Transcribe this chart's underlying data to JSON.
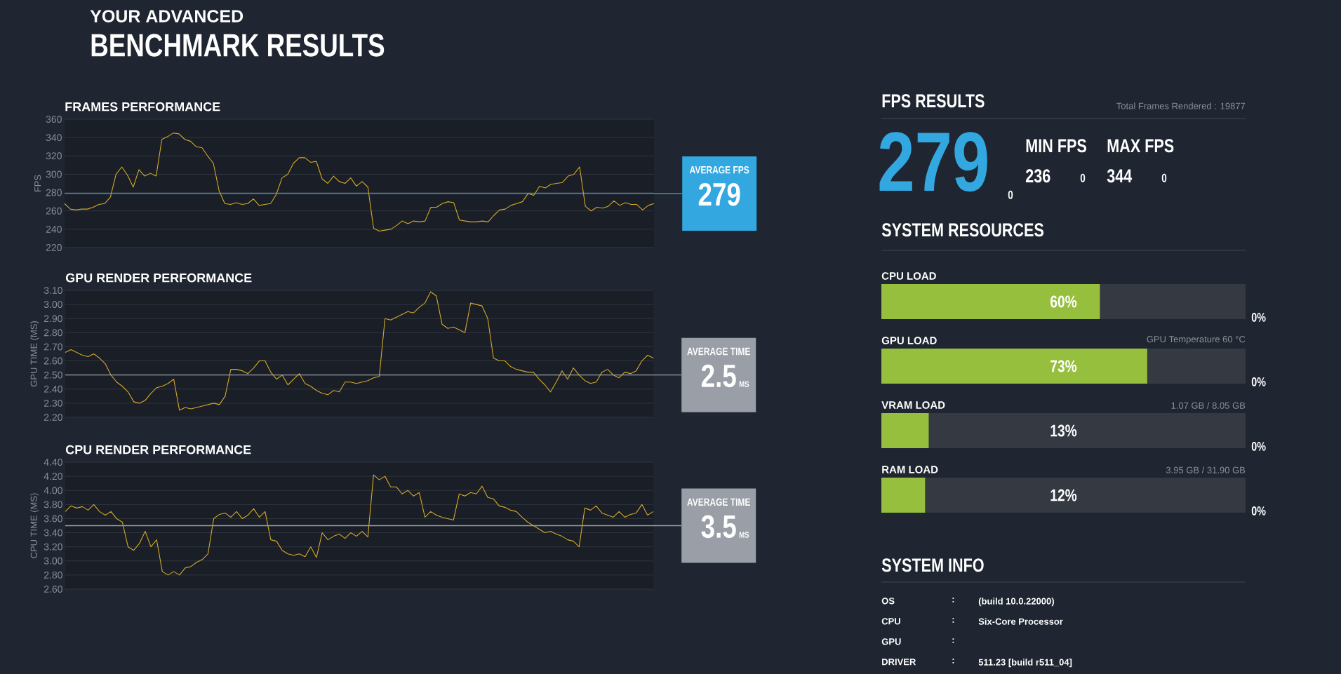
{
  "chart_data": [
    {
      "type": "other",
      "title": "YOUR ADVANCED",
      "subtitle": "BENCHMARK RESULTS"
    },
    {
      "type": "line",
      "title": "FRAMES PERFORMANCE",
      "ylabel": "FPS",
      "color": "#d4aa2a",
      "grid": "y",
      "ylim": [
        220,
        360
      ],
      "yticks": [
        220,
        240,
        260,
        280,
        300,
        320,
        340,
        360
      ],
      "ref_lines": [
        {
          "axis": "y",
          "value": 279,
          "label": "AVERAGE FPS",
          "color": "#33a8e0"
        }
      ],
      "annotations": [
        "279"
      ],
      "categories": [
        null,
        null,
        null,
        null,
        null,
        null,
        null,
        null,
        null,
        null,
        null,
        null,
        null,
        null,
        null,
        null,
        null,
        null,
        null,
        null,
        null,
        null,
        null,
        null,
        null,
        null,
        null,
        null,
        null,
        null,
        null,
        null,
        null,
        null,
        null,
        null,
        null,
        null,
        null,
        null,
        null,
        null,
        null,
        null,
        null,
        null,
        null,
        null,
        null,
        null,
        null,
        null,
        null,
        null,
        null,
        null,
        null,
        null,
        null,
        null,
        null,
        null,
        null,
        null,
        null,
        null,
        null,
        null,
        null,
        null,
        null,
        null,
        null,
        null,
        null,
        null,
        null,
        null,
        null,
        null,
        null,
        null,
        null,
        null,
        null,
        null,
        null,
        null,
        null,
        null,
        null,
        null,
        null,
        null,
        null,
        null,
        null,
        null,
        null,
        null,
        null,
        null,
        null,
        null
      ],
      "values": [
        268,
        262,
        261,
        262,
        262,
        264,
        267,
        268,
        275,
        300,
        308,
        299,
        286,
        305,
        298,
        301,
        298,
        338,
        341,
        345,
        344,
        338,
        336,
        330,
        329,
        320,
        312,
        282,
        268,
        267,
        269,
        267,
        268,
        273,
        266,
        267,
        268,
        278,
        296,
        300,
        312,
        318,
        318,
        313,
        314,
        295,
        290,
        298,
        292,
        290,
        296,
        287,
        292,
        286,
        241,
        238,
        239,
        240,
        244,
        249,
        246,
        249,
        248,
        249,
        264,
        264,
        268,
        270,
        269,
        250,
        249,
        248,
        248,
        249,
        248,
        255,
        261,
        262,
        266,
        268,
        270,
        279,
        277,
        287,
        285,
        289,
        290,
        291,
        298,
        300,
        308,
        265,
        260,
        264,
        263,
        265,
        271,
        266,
        269,
        267,
        267,
        261,
        266,
        268
      ]
    },
    {
      "type": "line",
      "title": "GPU RENDER PERFORMANCE",
      "ylabel": "GPU TIME (MS)",
      "color": "#d4aa2a",
      "grid": "y",
      "ylim": [
        2.2,
        3.1
      ],
      "yticks": [
        {
          "value": 2.2,
          "label": "2.20"
        },
        {
          "value": 2.3,
          "label": "2.30"
        },
        {
          "value": 2.4,
          "label": "2.40"
        },
        {
          "value": 2.5,
          "label": "2.50"
        },
        {
          "value": 2.6,
          "label": "2.60"
        },
        {
          "value": 2.7,
          "label": "2.70"
        },
        {
          "value": 2.8,
          "label": "2.80"
        },
        {
          "value": 2.9,
          "label": "2.90"
        },
        {
          "value": 3.0,
          "label": "3.00"
        },
        {
          "value": 3.1,
          "label": "3.10"
        }
      ],
      "ref_lines": [
        {
          "axis": "y",
          "value": 2.5,
          "label": "AVERAGE TIME",
          "color": "#9a9ea6"
        }
      ],
      "annotations": [
        "2.5",
        "MS"
      ],
      "categories": [
        null,
        null,
        null,
        null,
        null,
        null,
        null,
        null,
        null,
        null,
        null,
        null,
        null,
        null,
        null,
        null,
        null,
        null,
        null,
        null,
        null,
        null,
        null,
        null,
        null,
        null,
        null,
        null,
        null,
        null,
        null,
        null,
        null,
        null,
        null,
        null,
        null,
        null,
        null,
        null,
        null,
        null,
        null,
        null,
        null,
        null,
        null,
        null,
        null,
        null,
        null,
        null,
        null,
        null,
        null,
        null,
        null,
        null,
        null,
        null,
        null,
        null,
        null,
        null,
        null,
        null,
        null,
        null,
        null,
        null,
        null,
        null,
        null,
        null,
        null,
        null,
        null,
        null,
        null,
        null,
        null,
        null,
        null,
        null,
        null,
        null,
        null,
        null,
        null,
        null,
        null,
        null,
        null,
        null,
        null,
        null,
        null,
        null,
        null,
        null,
        null,
        null,
        null,
        null
      ],
      "values": [
        2.66,
        2.68,
        2.66,
        2.64,
        2.63,
        2.65,
        2.62,
        2.58,
        2.5,
        2.45,
        2.42,
        2.38,
        2.31,
        2.3,
        2.32,
        2.37,
        2.41,
        2.42,
        2.44,
        2.47,
        2.25,
        2.27,
        2.26,
        2.27,
        2.28,
        2.29,
        2.3,
        2.29,
        2.35,
        2.54,
        2.54,
        2.53,
        2.51,
        2.55,
        2.6,
        2.6,
        2.52,
        2.47,
        2.5,
        2.43,
        2.47,
        2.51,
        2.44,
        2.42,
        2.39,
        2.37,
        2.36,
        2.39,
        2.38,
        2.45,
        2.45,
        2.44,
        2.45,
        2.46,
        2.48,
        2.49,
        2.9,
        2.89,
        2.91,
        2.93,
        2.95,
        2.94,
        2.98,
        3.01,
        3.09,
        3.06,
        2.86,
        2.83,
        2.84,
        2.82,
        2.8,
        3.01,
        3.0,
        2.99,
        2.9,
        2.62,
        2.6,
        2.6,
        2.56,
        2.54,
        2.53,
        2.52,
        2.52,
        2.47,
        2.43,
        2.38,
        2.45,
        2.53,
        2.47,
        2.55,
        2.5,
        2.46,
        2.44,
        2.45,
        2.52,
        2.54,
        2.5,
        2.48,
        2.52,
        2.51,
        2.53,
        2.6,
        2.64,
        2.62
      ]
    },
    {
      "type": "line",
      "title": "CPU RENDER PERFORMANCE",
      "ylabel": "CPU TIME (MS)",
      "color": "#d4aa2a",
      "grid": "y",
      "ylim": [
        2.6,
        4.4
      ],
      "yticks": [
        {
          "value": 2.6,
          "label": "2.60"
        },
        {
          "value": 2.8,
          "label": "2.80"
        },
        {
          "value": 3.0,
          "label": "3.00"
        },
        {
          "value": 3.2,
          "label": "3.20"
        },
        {
          "value": 3.4,
          "label": "3.40"
        },
        {
          "value": 3.6,
          "label": "3.60"
        },
        {
          "value": 3.8,
          "label": "3.80"
        },
        {
          "value": 4.0,
          "label": "4.00"
        },
        {
          "value": 4.2,
          "label": "4.20"
        },
        {
          "value": 4.4,
          "label": "4.40"
        }
      ],
      "ref_lines": [
        {
          "axis": "y",
          "value": 3.5,
          "label": "AVERAGE TIME",
          "color": "#9a9ea6"
        }
      ],
      "annotations": [
        "3.5",
        "MS"
      ],
      "categories": [
        null,
        null,
        null,
        null,
        null,
        null,
        null,
        null,
        null,
        null,
        null,
        null,
        null,
        null,
        null,
        null,
        null,
        null,
        null,
        null,
        null,
        null,
        null,
        null,
        null,
        null,
        null,
        null,
        null,
        null,
        null,
        null,
        null,
        null,
        null,
        null,
        null,
        null,
        null,
        null,
        null,
        null,
        null,
        null,
        null,
        null,
        null,
        null,
        null,
        null,
        null,
        null,
        null,
        null,
        null,
        null,
        null,
        null,
        null,
        null,
        null,
        null,
        null,
        null,
        null,
        null,
        null,
        null,
        null,
        null,
        null,
        null,
        null,
        null,
        null,
        null,
        null,
        null,
        null,
        null,
        null,
        null,
        null,
        null,
        null,
        null,
        null,
        null,
        null,
        null,
        null,
        null,
        null,
        null,
        null,
        null,
        null,
        null,
        null,
        null,
        null,
        null,
        null,
        null
      ],
      "values": [
        3.7,
        3.78,
        3.75,
        3.77,
        3.72,
        3.8,
        3.7,
        3.65,
        3.7,
        3.6,
        3.55,
        3.2,
        3.15,
        3.25,
        3.42,
        3.2,
        3.3,
        2.85,
        2.8,
        2.85,
        2.8,
        2.9,
        2.92,
        2.98,
        3.02,
        3.1,
        3.6,
        3.66,
        3.68,
        3.62,
        3.7,
        3.6,
        3.65,
        3.74,
        3.62,
        3.7,
        3.3,
        3.28,
        3.15,
        3.1,
        3.08,
        3.1,
        3.06,
        3.2,
        3.05,
        3.4,
        3.3,
        3.35,
        3.38,
        3.32,
        3.4,
        3.35,
        3.42,
        3.34,
        4.22,
        4.15,
        4.2,
        4.05,
        4.05,
        3.95,
        4.0,
        3.92,
        3.97,
        3.62,
        3.7,
        3.65,
        3.62,
        3.6,
        3.58,
        3.95,
        3.92,
        3.97,
        3.95,
        4.06,
        3.9,
        3.88,
        3.78,
        3.76,
        3.72,
        3.7,
        3.62,
        3.55,
        3.5,
        3.45,
        3.4,
        3.42,
        3.38,
        3.35,
        3.3,
        3.28,
        3.2,
        3.75,
        3.72,
        3.78,
        3.68,
        3.65,
        3.62,
        3.7,
        3.62,
        3.66,
        3.68,
        3.8,
        3.65,
        3.7
      ]
    },
    {
      "type": "other",
      "title": "FPS RESULTS",
      "annotations": [
        "Total Frames Rendered : 19877",
        "279",
        "0",
        "MIN FPS",
        "236",
        "0",
        "MAX FPS",
        "344",
        "0"
      ]
    },
    {
      "type": "bar",
      "orientation": "horizontal",
      "title": "SYSTEM RESOURCES",
      "categories": [
        "CPU LOAD",
        "GPU LOAD",
        "VRAM LOAD",
        "RAM LOAD"
      ],
      "values": [
        60,
        73,
        13,
        12
      ],
      "value_labels": [
        "60%",
        "73%",
        "13%",
        "12%"
      ],
      "color": "#95bf3c",
      "xlim": [
        0,
        100
      ],
      "annotations": [
        "GPU Temperature 60 °C",
        "1.07 GB / 8.05 GB",
        "3.95 GB / 31.90 GB",
        "0%",
        "0%",
        "0%",
        "0%"
      ]
    },
    {
      "type": "other",
      "title": "SYSTEM INFO",
      "annotations": [
        "OS",
        ":",
        "(build 10.0.22000)",
        "CPU",
        ":",
        "Six-Core Processor",
        "GPU",
        ":",
        "DRIVER",
        ":",
        "511.23 [build r511_04]"
      ]
    }
  ]
}
